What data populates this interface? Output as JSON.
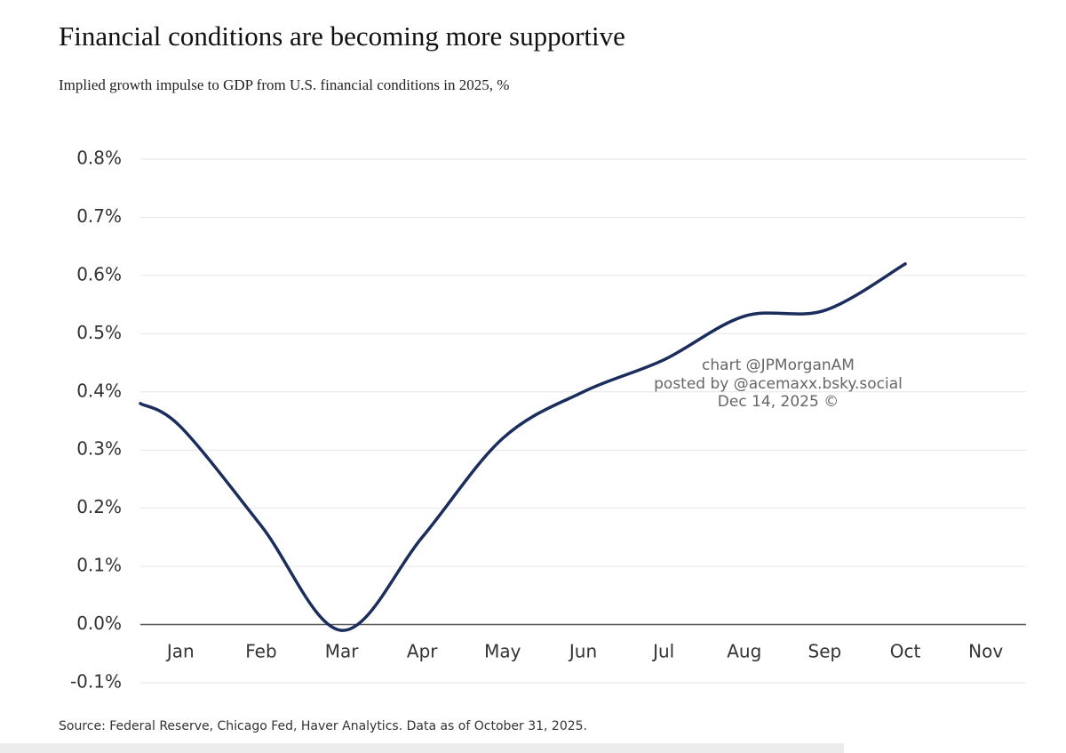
{
  "chart_data": {
    "type": "line",
    "title": "Financial conditions are becoming more supportive",
    "subtitle": "Implied growth impulse to GDP from U.S. financial conditions in 2025, %",
    "source": "Source: Federal Reserve, Chicago Fed, Haver Analytics. Data as of October 31, 2025.",
    "annotations": [
      "chart @JPMorganAM",
      "posted by @acemaxx.bsky.social",
      "Dec 14, 2025 ©"
    ],
    "x": [
      0.5,
      1,
      2,
      3,
      4,
      5,
      6,
      7,
      8,
      9,
      10
    ],
    "xlim": [
      0.5,
      11.5
    ],
    "xticks": [
      {
        "value": 1,
        "label": "Jan"
      },
      {
        "value": 2,
        "label": "Feb"
      },
      {
        "value": 3,
        "label": "Mar"
      },
      {
        "value": 4,
        "label": "Apr"
      },
      {
        "value": 5,
        "label": "May"
      },
      {
        "value": 6,
        "label": "Jun"
      },
      {
        "value": 7,
        "label": "Jul"
      },
      {
        "value": 8,
        "label": "Aug"
      },
      {
        "value": 9,
        "label": "Sep"
      },
      {
        "value": 10,
        "label": "Oct"
      },
      {
        "value": 11,
        "label": "Nov"
      }
    ],
    "ylim": [
      -0.1,
      0.8
    ],
    "yticks": [
      {
        "value": -0.1,
        "label": "-0.1%"
      },
      {
        "value": 0.0,
        "label": "0.0%"
      },
      {
        "value": 0.1,
        "label": "0.1%"
      },
      {
        "value": 0.2,
        "label": "0.2%"
      },
      {
        "value": 0.3,
        "label": "0.3%"
      },
      {
        "value": 0.4,
        "label": "0.4%"
      },
      {
        "value": 0.5,
        "label": "0.5%"
      },
      {
        "value": 0.6,
        "label": "0.6%"
      },
      {
        "value": 0.7,
        "label": "0.7%"
      },
      {
        "value": 0.8,
        "label": "0.8%"
      }
    ],
    "grid": true,
    "series": [
      {
        "color": "#1b2d5c",
        "values": [
          0.38,
          0.34,
          0.17,
          -0.01,
          0.15,
          0.32,
          0.4,
          0.455,
          0.53,
          0.54,
          0.62
        ]
      }
    ]
  }
}
